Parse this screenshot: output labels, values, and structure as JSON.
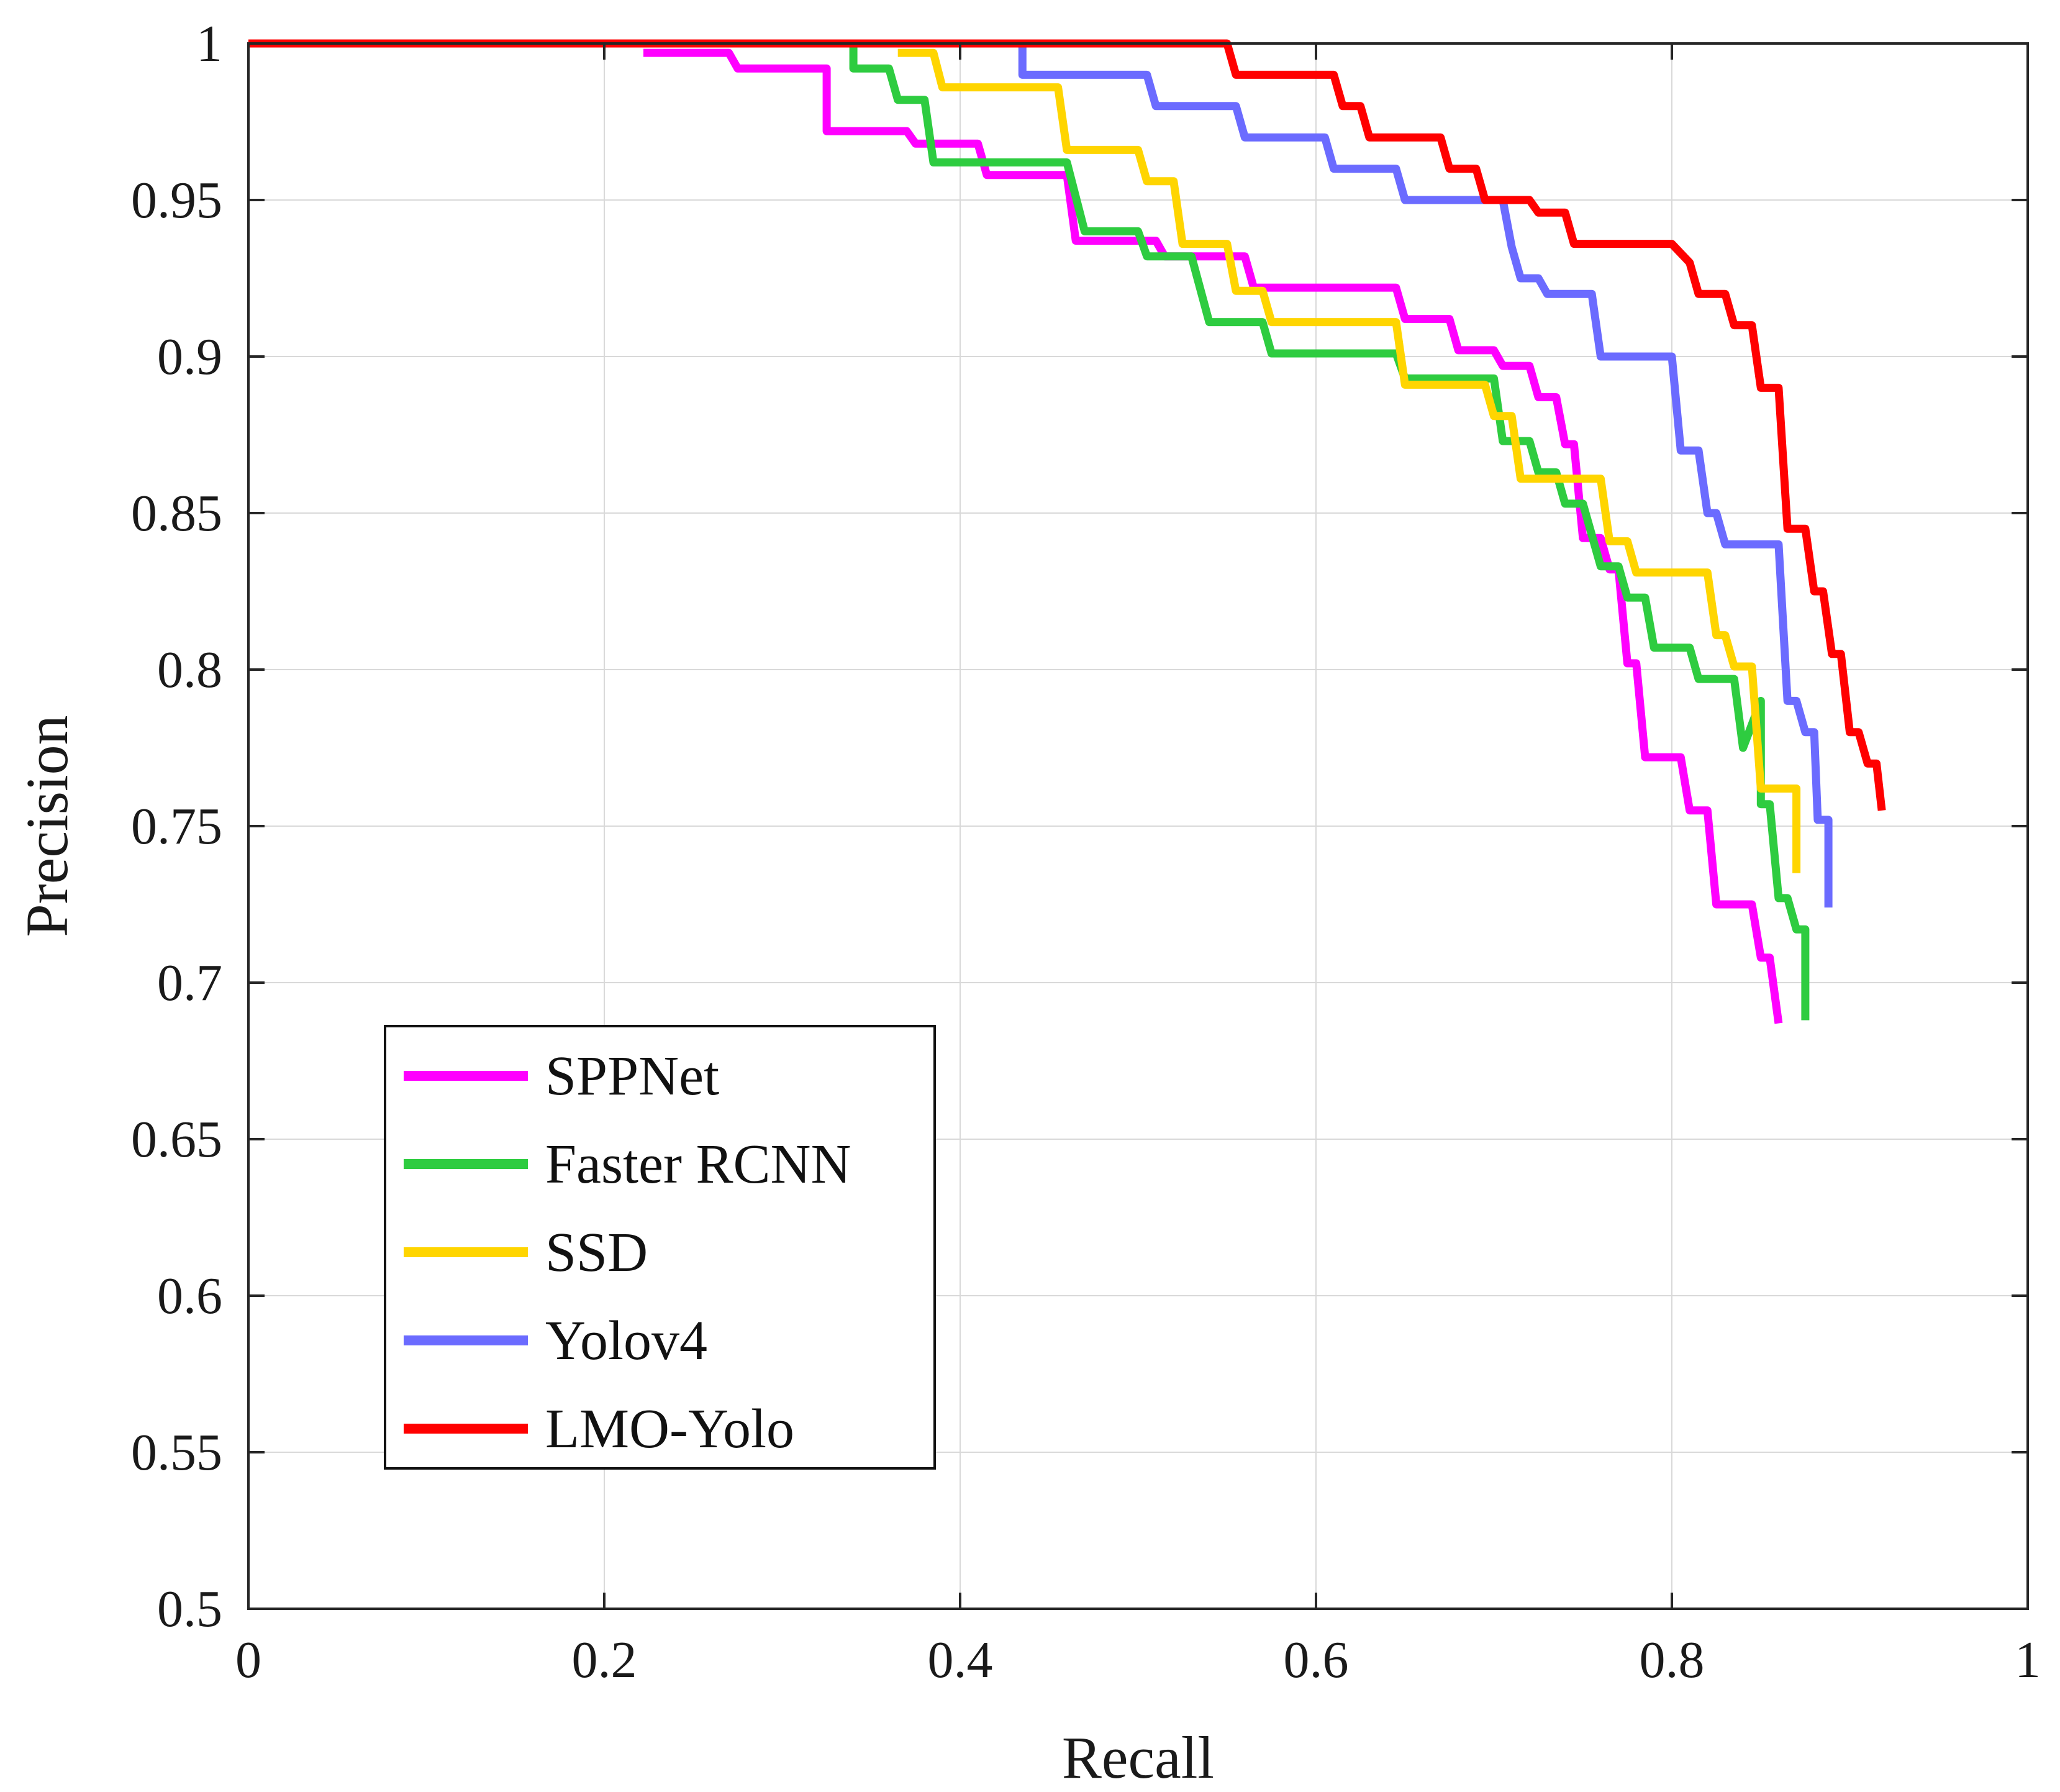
{
  "chart_data": {
    "type": "line",
    "title": "",
    "xlabel": "Recall",
    "ylabel": "Precision",
    "xlim": [
      0,
      1
    ],
    "ylim": [
      0.5,
      1
    ],
    "grid": true,
    "legend_position": "bottom-left",
    "xticks": [
      0,
      0.2,
      0.4,
      0.6,
      0.8,
      1
    ],
    "xtick_labels": [
      "0",
      "0.2",
      "0.4",
      "0.6",
      "0.8",
      "1"
    ],
    "yticks": [
      0.5,
      0.55,
      0.6,
      0.65,
      0.7,
      0.75,
      0.8,
      0.85,
      0.9,
      0.95,
      1
    ],
    "ytick_labels": [
      "0.5",
      "0.55",
      "0.6",
      "0.65",
      "0.7",
      "0.75",
      "0.8",
      "0.85",
      "0.9",
      "0.95",
      "1"
    ],
    "series": [
      {
        "name": "SPPNet",
        "color": "#ff00ff",
        "points": [
          [
            0.222,
            0.997
          ],
          [
            0.27,
            0.997
          ],
          [
            0.275,
            0.992
          ],
          [
            0.325,
            0.992
          ],
          [
            0.325,
            0.972
          ],
          [
            0.37,
            0.972
          ],
          [
            0.375,
            0.968
          ],
          [
            0.41,
            0.968
          ],
          [
            0.415,
            0.958
          ],
          [
            0.46,
            0.958
          ],
          [
            0.465,
            0.937
          ],
          [
            0.51,
            0.937
          ],
          [
            0.515,
            0.932
          ],
          [
            0.56,
            0.932
          ],
          [
            0.565,
            0.922
          ],
          [
            0.645,
            0.922
          ],
          [
            0.65,
            0.912
          ],
          [
            0.675,
            0.912
          ],
          [
            0.68,
            0.902
          ],
          [
            0.7,
            0.902
          ],
          [
            0.705,
            0.897
          ],
          [
            0.72,
            0.897
          ],
          [
            0.725,
            0.887
          ],
          [
            0.735,
            0.887
          ],
          [
            0.74,
            0.872
          ],
          [
            0.745,
            0.872
          ],
          [
            0.75,
            0.842
          ],
          [
            0.76,
            0.842
          ],
          [
            0.765,
            0.832
          ],
          [
            0.77,
            0.832
          ],
          [
            0.775,
            0.802
          ],
          [
            0.78,
            0.802
          ],
          [
            0.785,
            0.772
          ],
          [
            0.805,
            0.772
          ],
          [
            0.81,
            0.755
          ],
          [
            0.82,
            0.755
          ],
          [
            0.825,
            0.725
          ],
          [
            0.845,
            0.725
          ],
          [
            0.85,
            0.708
          ],
          [
            0.855,
            0.708
          ],
          [
            0.86,
            0.687
          ]
        ]
      },
      {
        "name": "Faster RCNN",
        "color": "#2ecc40",
        "points": [
          [
            0.34,
            1.0
          ],
          [
            0.34,
            0.992
          ],
          [
            0.36,
            0.992
          ],
          [
            0.365,
            0.982
          ],
          [
            0.38,
            0.982
          ],
          [
            0.385,
            0.962
          ],
          [
            0.46,
            0.962
          ],
          [
            0.47,
            0.94
          ],
          [
            0.5,
            0.94
          ],
          [
            0.505,
            0.932
          ],
          [
            0.53,
            0.932
          ],
          [
            0.54,
            0.911
          ],
          [
            0.57,
            0.911
          ],
          [
            0.575,
            0.901
          ],
          [
            0.645,
            0.901
          ],
          [
            0.65,
            0.893
          ],
          [
            0.7,
            0.893
          ],
          [
            0.705,
            0.873
          ],
          [
            0.72,
            0.873
          ],
          [
            0.725,
            0.863
          ],
          [
            0.735,
            0.863
          ],
          [
            0.74,
            0.853
          ],
          [
            0.75,
            0.853
          ],
          [
            0.76,
            0.833
          ],
          [
            0.77,
            0.833
          ],
          [
            0.775,
            0.823
          ],
          [
            0.785,
            0.823
          ],
          [
            0.79,
            0.807
          ],
          [
            0.81,
            0.807
          ],
          [
            0.815,
            0.797
          ],
          [
            0.835,
            0.797
          ],
          [
            0.84,
            0.775
          ],
          [
            0.85,
            0.79
          ],
          [
            0.85,
            0.757
          ],
          [
            0.855,
            0.757
          ],
          [
            0.86,
            0.727
          ],
          [
            0.865,
            0.727
          ],
          [
            0.87,
            0.717
          ],
          [
            0.875,
            0.717
          ],
          [
            0.875,
            0.688
          ]
        ]
      },
      {
        "name": "SSD",
        "color": "#ffd500",
        "points": [
          [
            0.365,
            0.997
          ],
          [
            0.385,
            0.997
          ],
          [
            0.39,
            0.986
          ],
          [
            0.455,
            0.986
          ],
          [
            0.46,
            0.966
          ],
          [
            0.5,
            0.966
          ],
          [
            0.505,
            0.956
          ],
          [
            0.52,
            0.956
          ],
          [
            0.525,
            0.936
          ],
          [
            0.55,
            0.936
          ],
          [
            0.555,
            0.921
          ],
          [
            0.57,
            0.921
          ],
          [
            0.575,
            0.911
          ],
          [
            0.645,
            0.911
          ],
          [
            0.65,
            0.891
          ],
          [
            0.695,
            0.891
          ],
          [
            0.7,
            0.881
          ],
          [
            0.71,
            0.881
          ],
          [
            0.715,
            0.861
          ],
          [
            0.76,
            0.861
          ],
          [
            0.765,
            0.841
          ],
          [
            0.775,
            0.841
          ],
          [
            0.78,
            0.831
          ],
          [
            0.82,
            0.831
          ],
          [
            0.825,
            0.811
          ],
          [
            0.83,
            0.811
          ],
          [
            0.835,
            0.801
          ],
          [
            0.845,
            0.801
          ],
          [
            0.85,
            0.762
          ],
          [
            0.87,
            0.762
          ],
          [
            0.87,
            0.735
          ]
        ]
      },
      {
        "name": "Yolov4",
        "color": "#6b6bff",
        "points": [
          [
            0.435,
            1.0
          ],
          [
            0.435,
            0.99
          ],
          [
            0.505,
            0.99
          ],
          [
            0.51,
            0.98
          ],
          [
            0.555,
            0.98
          ],
          [
            0.56,
            0.97
          ],
          [
            0.605,
            0.97
          ],
          [
            0.61,
            0.96
          ],
          [
            0.645,
            0.96
          ],
          [
            0.65,
            0.95
          ],
          [
            0.705,
            0.95
          ],
          [
            0.71,
            0.935
          ],
          [
            0.715,
            0.925
          ],
          [
            0.725,
            0.925
          ],
          [
            0.73,
            0.92
          ],
          [
            0.755,
            0.92
          ],
          [
            0.76,
            0.9
          ],
          [
            0.8,
            0.9
          ],
          [
            0.805,
            0.87
          ],
          [
            0.815,
            0.87
          ],
          [
            0.82,
            0.85
          ],
          [
            0.825,
            0.85
          ],
          [
            0.83,
            0.84
          ],
          [
            0.86,
            0.84
          ],
          [
            0.865,
            0.79
          ],
          [
            0.87,
            0.79
          ],
          [
            0.875,
            0.78
          ],
          [
            0.88,
            0.78
          ],
          [
            0.882,
            0.752
          ],
          [
            0.888,
            0.752
          ],
          [
            0.888,
            0.724
          ]
        ]
      },
      {
        "name": "LMO-Yolo",
        "color": "#ff0000",
        "points": [
          [
            0.0,
            1.0
          ],
          [
            0.55,
            1.0
          ],
          [
            0.555,
            0.99
          ],
          [
            0.61,
            0.99
          ],
          [
            0.615,
            0.98
          ],
          [
            0.625,
            0.98
          ],
          [
            0.63,
            0.97
          ],
          [
            0.67,
            0.97
          ],
          [
            0.675,
            0.96
          ],
          [
            0.69,
            0.96
          ],
          [
            0.695,
            0.95
          ],
          [
            0.72,
            0.95
          ],
          [
            0.725,
            0.946
          ],
          [
            0.74,
            0.946
          ],
          [
            0.745,
            0.936
          ],
          [
            0.8,
            0.936
          ],
          [
            0.81,
            0.93
          ],
          [
            0.815,
            0.92
          ],
          [
            0.83,
            0.92
          ],
          [
            0.835,
            0.91
          ],
          [
            0.845,
            0.91
          ],
          [
            0.85,
            0.89
          ],
          [
            0.86,
            0.89
          ],
          [
            0.865,
            0.845
          ],
          [
            0.875,
            0.845
          ],
          [
            0.88,
            0.825
          ],
          [
            0.885,
            0.825
          ],
          [
            0.89,
            0.805
          ],
          [
            0.895,
            0.805
          ],
          [
            0.9,
            0.78
          ],
          [
            0.905,
            0.78
          ],
          [
            0.91,
            0.77
          ],
          [
            0.915,
            0.77
          ],
          [
            0.918,
            0.755
          ]
        ]
      }
    ]
  }
}
